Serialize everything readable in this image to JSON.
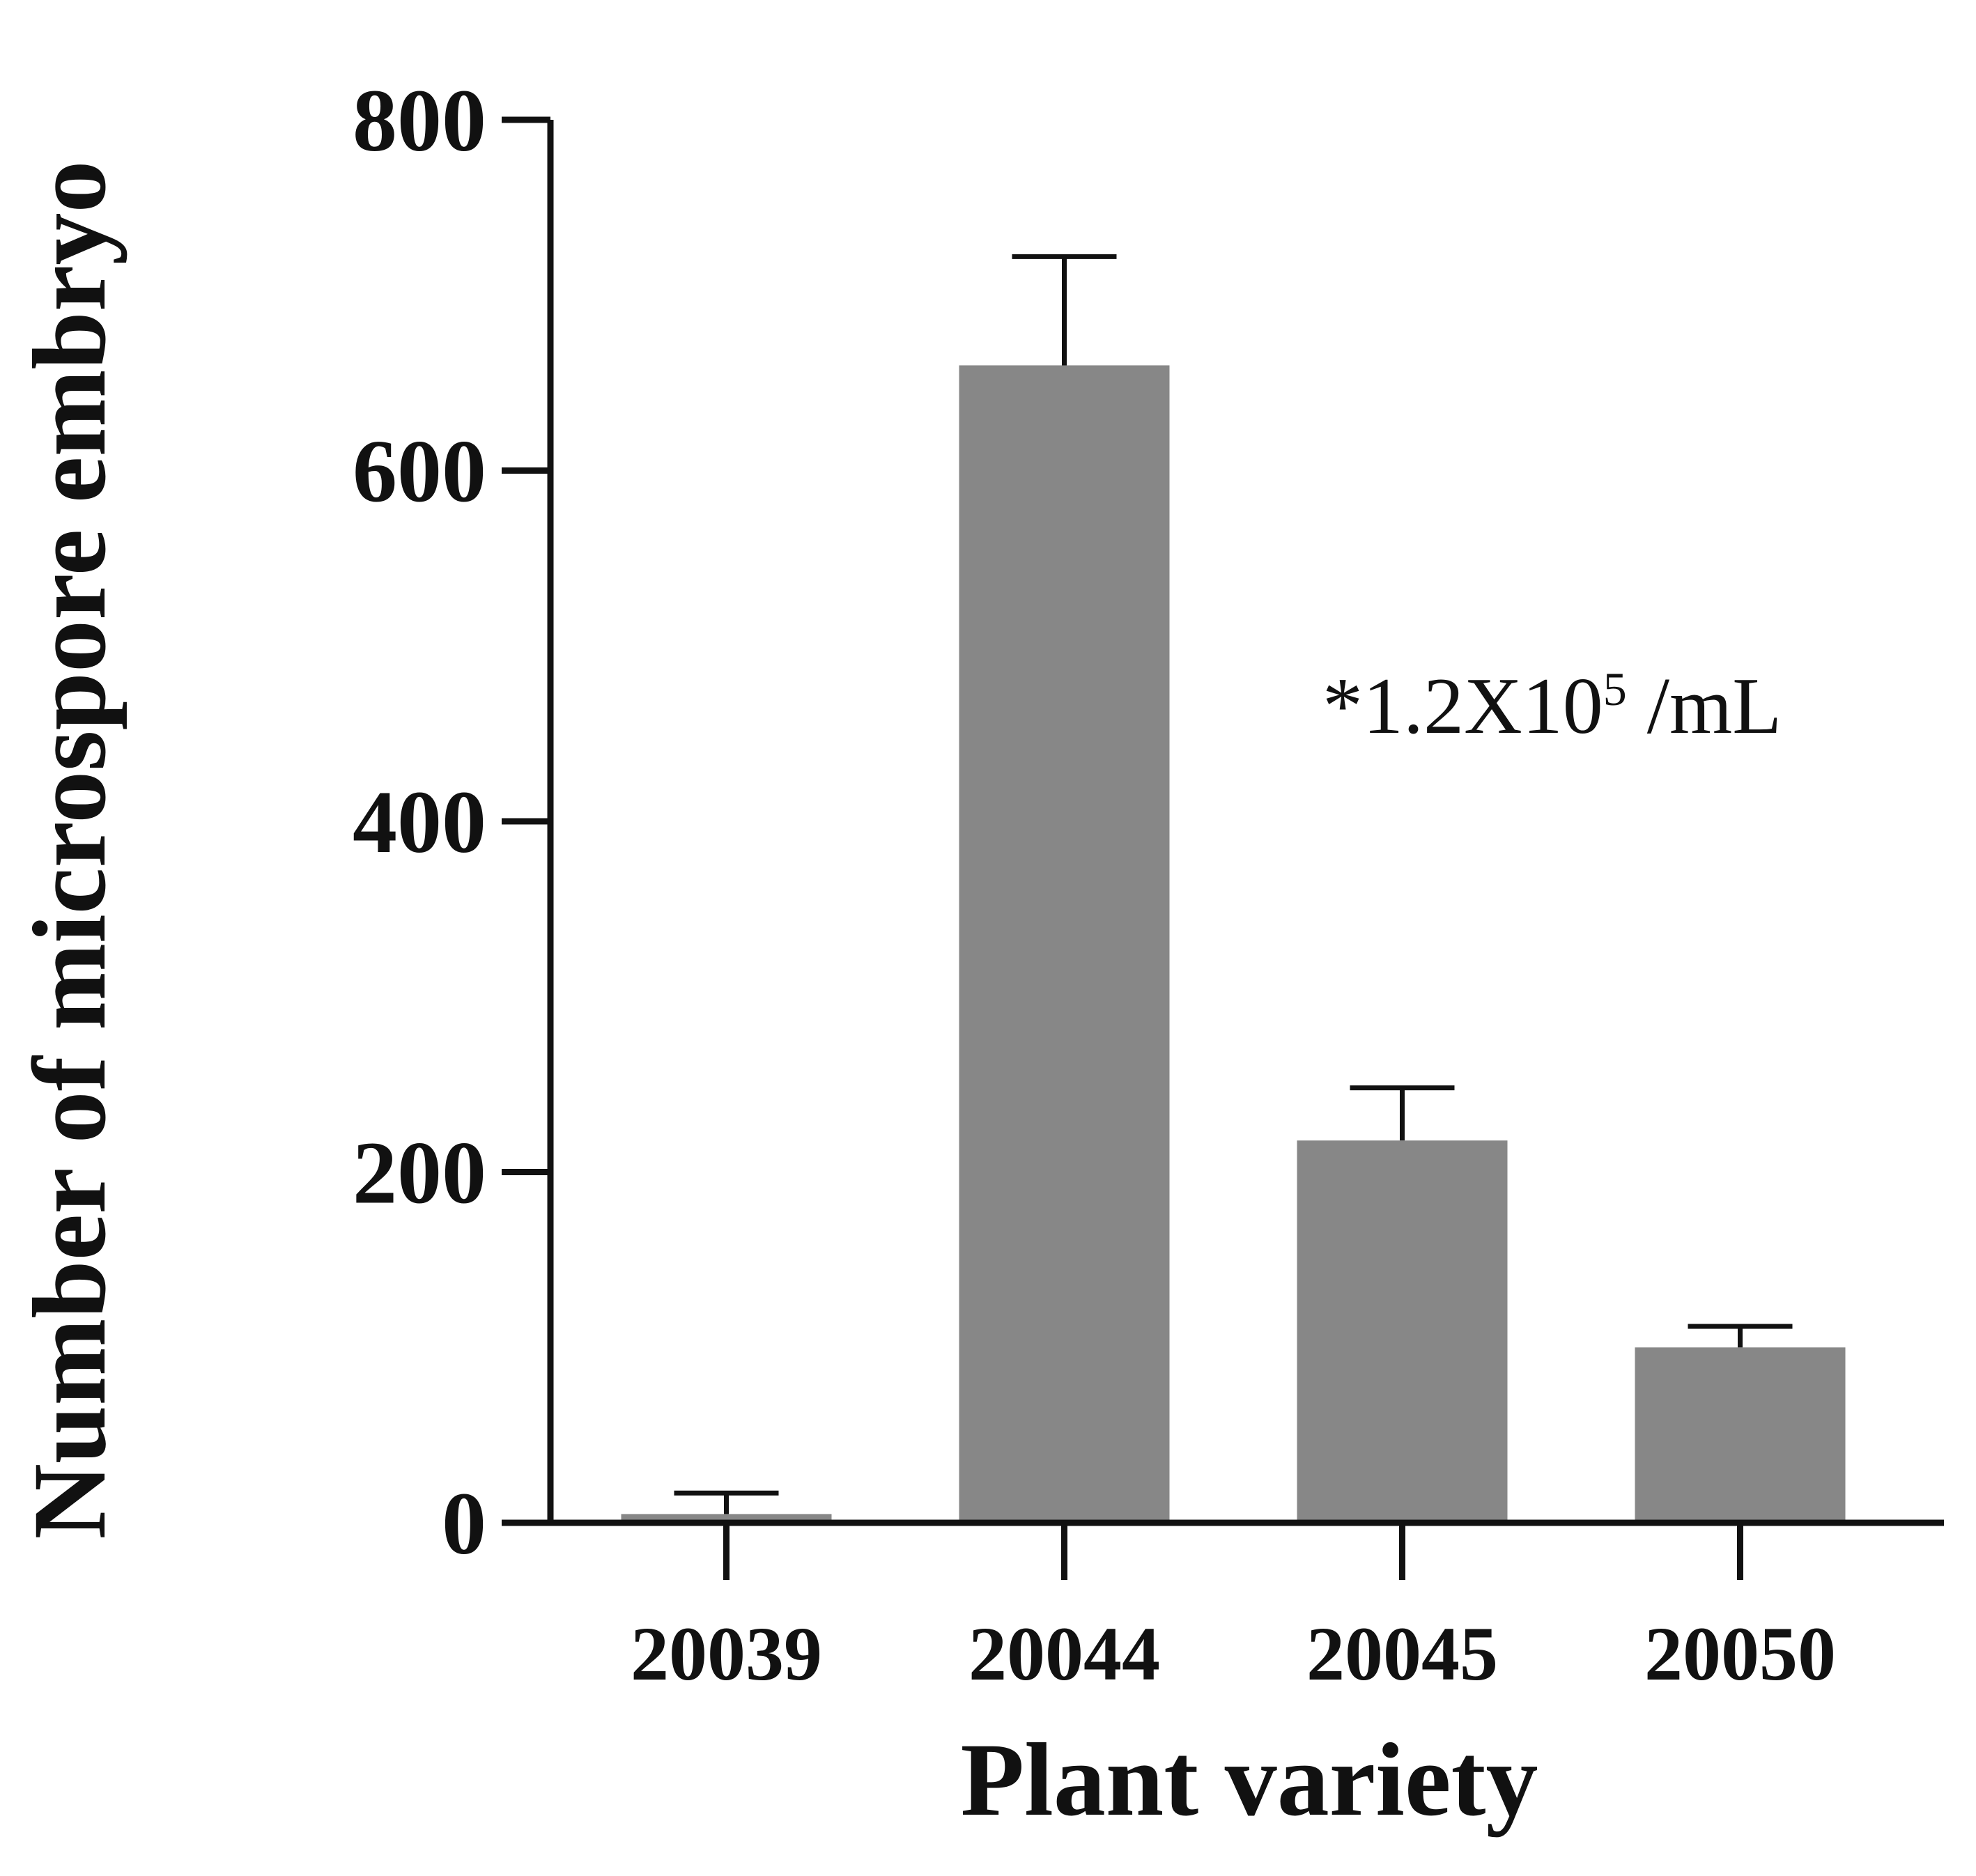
{
  "chart_data": {
    "type": "bar",
    "categories": [
      "20039",
      "20044",
      "20045",
      "20050"
    ],
    "values": [
      5,
      660,
      218,
      100
    ],
    "error_upper": [
      17,
      722,
      248,
      112
    ],
    "xlabel": "Plant variety",
    "ylabel": "Number of microspore embryo",
    "ylim": [
      0,
      800
    ],
    "yticks": [
      "0",
      "200",
      "400",
      "600",
      "800"
    ],
    "annotation": {
      "prefix": "*1.2X10",
      "superscript": "5",
      "suffix": " /mL"
    },
    "bar_color": "#878787",
    "axis_color": "#111111",
    "grid": false
  }
}
